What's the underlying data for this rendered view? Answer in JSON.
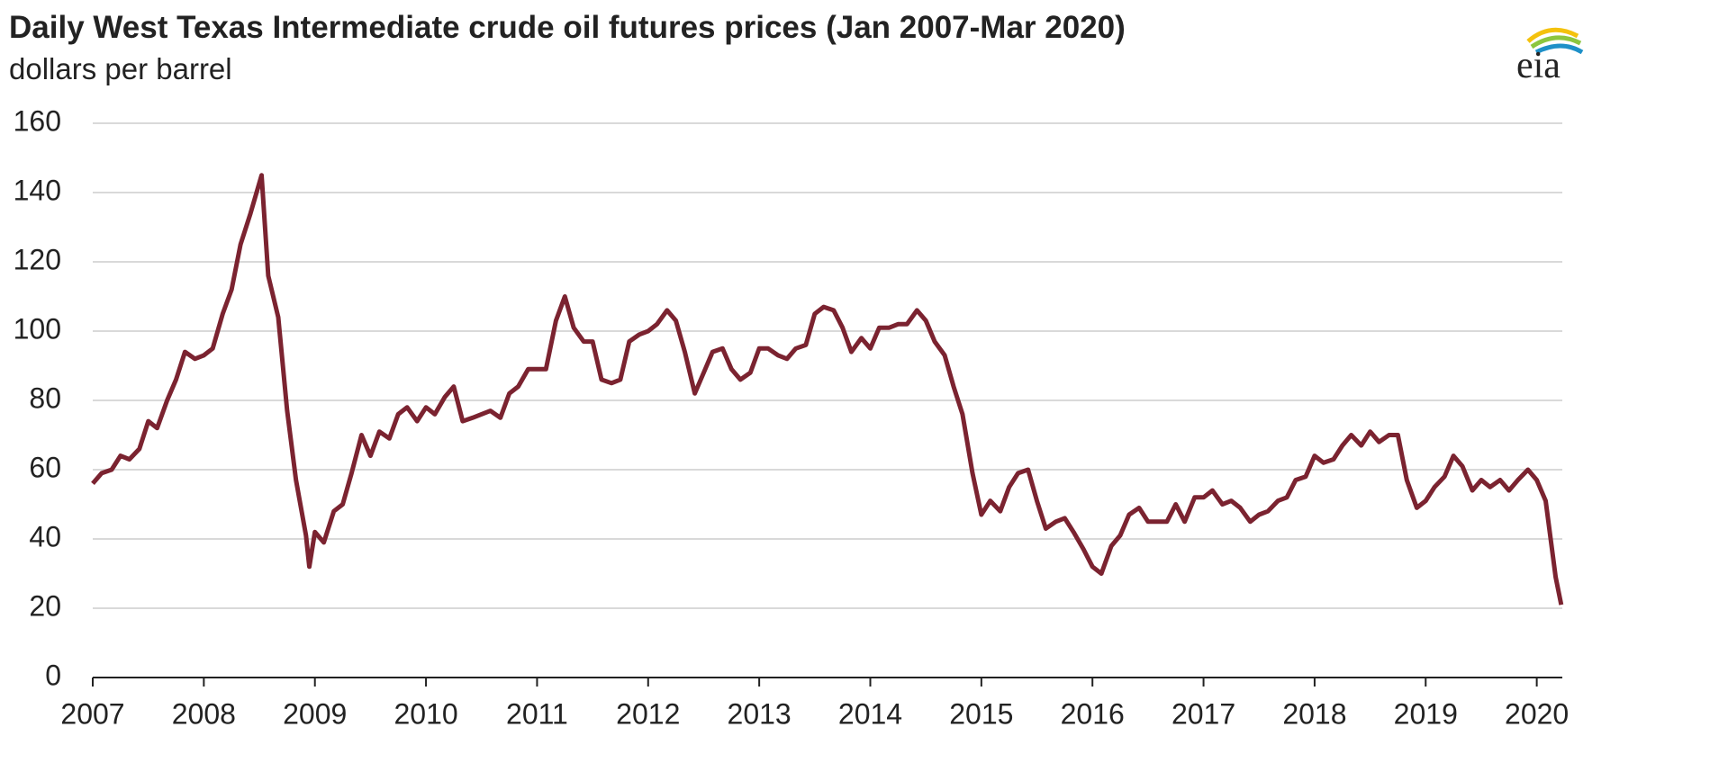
{
  "logo": "eia",
  "chart_data": {
    "type": "line",
    "title": "Daily West Texas Intermediate crude oil futures prices (Jan 2007-Mar 2020)",
    "subtitle": "dollars per barrel",
    "color": "#7b2330",
    "x": [
      2007.0,
      2007.08,
      2007.17,
      2007.25,
      2007.33,
      2007.42,
      2007.5,
      2007.58,
      2007.67,
      2007.75,
      2007.83,
      2007.92,
      2008.0,
      2008.08,
      2008.17,
      2008.25,
      2008.33,
      2008.42,
      2008.52,
      2008.58,
      2008.67,
      2008.75,
      2008.83,
      2008.92,
      2008.95,
      2009.0,
      2009.08,
      2009.17,
      2009.25,
      2009.33,
      2009.42,
      2009.5,
      2009.58,
      2009.67,
      2009.75,
      2009.83,
      2009.92,
      2010.0,
      2010.08,
      2010.17,
      2010.25,
      2010.33,
      2010.42,
      2010.5,
      2010.58,
      2010.67,
      2010.75,
      2010.83,
      2010.92,
      2011.0,
      2011.08,
      2011.17,
      2011.25,
      2011.33,
      2011.42,
      2011.5,
      2011.58,
      2011.67,
      2011.75,
      2011.83,
      2011.92,
      2012.0,
      2012.08,
      2012.17,
      2012.25,
      2012.33,
      2012.42,
      2012.5,
      2012.58,
      2012.67,
      2012.75,
      2012.83,
      2012.92,
      2013.0,
      2013.08,
      2013.17,
      2013.25,
      2013.33,
      2013.42,
      2013.5,
      2013.58,
      2013.67,
      2013.75,
      2013.83,
      2013.92,
      2014.0,
      2014.08,
      2014.17,
      2014.25,
      2014.33,
      2014.42,
      2014.5,
      2014.58,
      2014.67,
      2014.75,
      2014.83,
      2014.92,
      2015.0,
      2015.08,
      2015.17,
      2015.25,
      2015.33,
      2015.42,
      2015.5,
      2015.58,
      2015.67,
      2015.75,
      2015.83,
      2015.92,
      2016.0,
      2016.08,
      2016.17,
      2016.25,
      2016.33,
      2016.42,
      2016.5,
      2016.58,
      2016.67,
      2016.75,
      2016.83,
      2016.92,
      2017.0,
      2017.08,
      2017.17,
      2017.25,
      2017.33,
      2017.42,
      2017.5,
      2017.58,
      2017.67,
      2017.75,
      2017.83,
      2017.92,
      2018.0,
      2018.08,
      2018.17,
      2018.25,
      2018.33,
      2018.42,
      2018.5,
      2018.58,
      2018.67,
      2018.75,
      2018.83,
      2018.92,
      2019.0,
      2019.08,
      2019.17,
      2019.25,
      2019.33,
      2019.42,
      2019.5,
      2019.58,
      2019.67,
      2019.75,
      2019.83,
      2019.92,
      2020.0,
      2020.08,
      2020.17,
      2020.22
    ],
    "values": [
      56,
      59,
      60,
      64,
      63,
      66,
      74,
      72,
      80,
      86,
      94,
      92,
      93,
      95,
      105,
      112,
      125,
      134,
      145,
      116,
      104,
      77,
      57,
      41,
      32,
      42,
      39,
      48,
      50,
      59,
      70,
      64,
      71,
      69,
      76,
      78,
      74,
      78,
      76,
      81,
      84,
      74,
      75,
      76,
      77,
      75,
      82,
      84,
      89,
      89,
      89,
      103,
      110,
      101,
      97,
      97,
      86,
      85,
      86,
      97,
      99,
      100,
      102,
      106,
      103,
      94,
      82,
      88,
      94,
      95,
      89,
      86,
      88,
      95,
      95,
      93,
      92,
      95,
      96,
      105,
      107,
      106,
      101,
      94,
      98,
      95,
      101,
      101,
      102,
      102,
      106,
      103,
      97,
      93,
      84,
      76,
      59,
      47,
      51,
      48,
      55,
      59,
      60,
      51,
      43,
      45,
      46,
      42,
      37,
      32,
      30,
      38,
      41,
      47,
      49,
      45,
      45,
      45,
      50,
      45,
      52,
      52,
      54,
      50,
      51,
      49,
      45,
      47,
      48,
      51,
      52,
      57,
      58,
      64,
      62,
      63,
      67,
      70,
      67,
      71,
      68,
      70,
      70,
      57,
      49,
      51,
      55,
      58,
      64,
      61,
      54,
      57,
      55,
      57,
      54,
      57,
      60,
      57,
      51,
      29,
      21
    ],
    "xlim": [
      2007,
      2020.23
    ],
    "xticks": [
      2007,
      2008,
      2009,
      2010,
      2011,
      2012,
      2013,
      2014,
      2015,
      2016,
      2017,
      2018,
      2019,
      2020
    ],
    "ylim": [
      0,
      160
    ],
    "yticks": [
      0,
      20,
      40,
      60,
      80,
      100,
      120,
      140,
      160
    ],
    "grid": true
  }
}
